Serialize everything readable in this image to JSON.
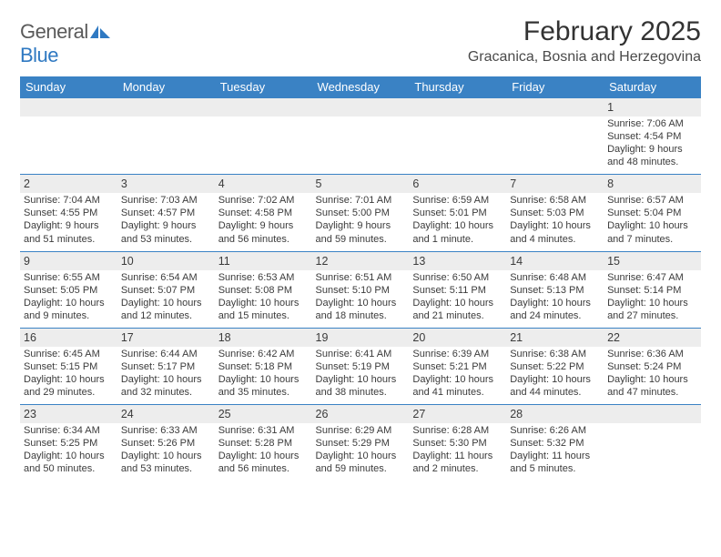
{
  "brand": {
    "word1": "General",
    "word2": "Blue",
    "color_general": "#5a5a5a",
    "color_blue": "#2f79c2",
    "logo_fill": "#2f79c2"
  },
  "title": "February 2025",
  "location": "Gracanica, Bosnia and Herzegovina",
  "colors": {
    "header_bg": "#3a82c4",
    "header_text": "#ffffff",
    "row_divider": "#3a82c4",
    "daynum_bg": "#ededed",
    "text": "#3b3b3b"
  },
  "weekdays": [
    "Sunday",
    "Monday",
    "Tuesday",
    "Wednesday",
    "Thursday",
    "Friday",
    "Saturday"
  ],
  "weeks": [
    [
      {
        "day": "",
        "lines": []
      },
      {
        "day": "",
        "lines": []
      },
      {
        "day": "",
        "lines": []
      },
      {
        "day": "",
        "lines": []
      },
      {
        "day": "",
        "lines": []
      },
      {
        "day": "",
        "lines": []
      },
      {
        "day": "1",
        "lines": [
          "Sunrise: 7:06 AM",
          "Sunset: 4:54 PM",
          "Daylight: 9 hours",
          "and 48 minutes."
        ]
      }
    ],
    [
      {
        "day": "2",
        "lines": [
          "Sunrise: 7:04 AM",
          "Sunset: 4:55 PM",
          "Daylight: 9 hours",
          "and 51 minutes."
        ]
      },
      {
        "day": "3",
        "lines": [
          "Sunrise: 7:03 AM",
          "Sunset: 4:57 PM",
          "Daylight: 9 hours",
          "and 53 minutes."
        ]
      },
      {
        "day": "4",
        "lines": [
          "Sunrise: 7:02 AM",
          "Sunset: 4:58 PM",
          "Daylight: 9 hours",
          "and 56 minutes."
        ]
      },
      {
        "day": "5",
        "lines": [
          "Sunrise: 7:01 AM",
          "Sunset: 5:00 PM",
          "Daylight: 9 hours",
          "and 59 minutes."
        ]
      },
      {
        "day": "6",
        "lines": [
          "Sunrise: 6:59 AM",
          "Sunset: 5:01 PM",
          "Daylight: 10 hours",
          "and 1 minute."
        ]
      },
      {
        "day": "7",
        "lines": [
          "Sunrise: 6:58 AM",
          "Sunset: 5:03 PM",
          "Daylight: 10 hours",
          "and 4 minutes."
        ]
      },
      {
        "day": "8",
        "lines": [
          "Sunrise: 6:57 AM",
          "Sunset: 5:04 PM",
          "Daylight: 10 hours",
          "and 7 minutes."
        ]
      }
    ],
    [
      {
        "day": "9",
        "lines": [
          "Sunrise: 6:55 AM",
          "Sunset: 5:05 PM",
          "Daylight: 10 hours",
          "and 9 minutes."
        ]
      },
      {
        "day": "10",
        "lines": [
          "Sunrise: 6:54 AM",
          "Sunset: 5:07 PM",
          "Daylight: 10 hours",
          "and 12 minutes."
        ]
      },
      {
        "day": "11",
        "lines": [
          "Sunrise: 6:53 AM",
          "Sunset: 5:08 PM",
          "Daylight: 10 hours",
          "and 15 minutes."
        ]
      },
      {
        "day": "12",
        "lines": [
          "Sunrise: 6:51 AM",
          "Sunset: 5:10 PM",
          "Daylight: 10 hours",
          "and 18 minutes."
        ]
      },
      {
        "day": "13",
        "lines": [
          "Sunrise: 6:50 AM",
          "Sunset: 5:11 PM",
          "Daylight: 10 hours",
          "and 21 minutes."
        ]
      },
      {
        "day": "14",
        "lines": [
          "Sunrise: 6:48 AM",
          "Sunset: 5:13 PM",
          "Daylight: 10 hours",
          "and 24 minutes."
        ]
      },
      {
        "day": "15",
        "lines": [
          "Sunrise: 6:47 AM",
          "Sunset: 5:14 PM",
          "Daylight: 10 hours",
          "and 27 minutes."
        ]
      }
    ],
    [
      {
        "day": "16",
        "lines": [
          "Sunrise: 6:45 AM",
          "Sunset: 5:15 PM",
          "Daylight: 10 hours",
          "and 29 minutes."
        ]
      },
      {
        "day": "17",
        "lines": [
          "Sunrise: 6:44 AM",
          "Sunset: 5:17 PM",
          "Daylight: 10 hours",
          "and 32 minutes."
        ]
      },
      {
        "day": "18",
        "lines": [
          "Sunrise: 6:42 AM",
          "Sunset: 5:18 PM",
          "Daylight: 10 hours",
          "and 35 minutes."
        ]
      },
      {
        "day": "19",
        "lines": [
          "Sunrise: 6:41 AM",
          "Sunset: 5:19 PM",
          "Daylight: 10 hours",
          "and 38 minutes."
        ]
      },
      {
        "day": "20",
        "lines": [
          "Sunrise: 6:39 AM",
          "Sunset: 5:21 PM",
          "Daylight: 10 hours",
          "and 41 minutes."
        ]
      },
      {
        "day": "21",
        "lines": [
          "Sunrise: 6:38 AM",
          "Sunset: 5:22 PM",
          "Daylight: 10 hours",
          "and 44 minutes."
        ]
      },
      {
        "day": "22",
        "lines": [
          "Sunrise: 6:36 AM",
          "Sunset: 5:24 PM",
          "Daylight: 10 hours",
          "and 47 minutes."
        ]
      }
    ],
    [
      {
        "day": "23",
        "lines": [
          "Sunrise: 6:34 AM",
          "Sunset: 5:25 PM",
          "Daylight: 10 hours",
          "and 50 minutes."
        ]
      },
      {
        "day": "24",
        "lines": [
          "Sunrise: 6:33 AM",
          "Sunset: 5:26 PM",
          "Daylight: 10 hours",
          "and 53 minutes."
        ]
      },
      {
        "day": "25",
        "lines": [
          "Sunrise: 6:31 AM",
          "Sunset: 5:28 PM",
          "Daylight: 10 hours",
          "and 56 minutes."
        ]
      },
      {
        "day": "26",
        "lines": [
          "Sunrise: 6:29 AM",
          "Sunset: 5:29 PM",
          "Daylight: 10 hours",
          "and 59 minutes."
        ]
      },
      {
        "day": "27",
        "lines": [
          "Sunrise: 6:28 AM",
          "Sunset: 5:30 PM",
          "Daylight: 11 hours",
          "and 2 minutes."
        ]
      },
      {
        "day": "28",
        "lines": [
          "Sunrise: 6:26 AM",
          "Sunset: 5:32 PM",
          "Daylight: 11 hours",
          "and 5 minutes."
        ]
      },
      {
        "day": "",
        "lines": []
      }
    ]
  ]
}
